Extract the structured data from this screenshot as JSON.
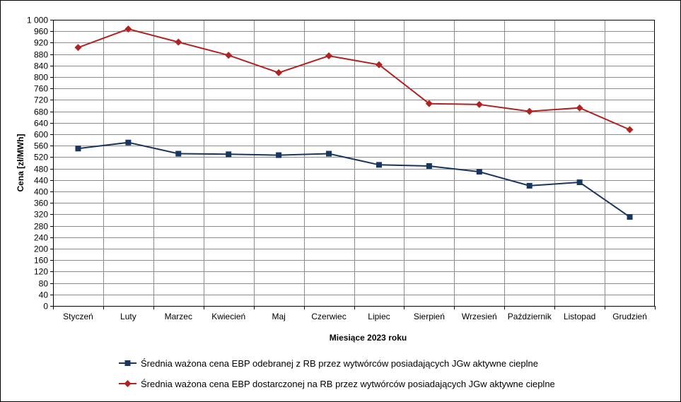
{
  "chart_data": {
    "type": "line",
    "title": "",
    "xlabel": "Miesiące 2023  roku",
    "ylabel": "Cena [zł/MWh]",
    "ylim": [
      0,
      1000
    ],
    "ytick_step": 40,
    "ytick_labels": [
      "0",
      "40",
      "80",
      "120",
      "160",
      "200",
      "240",
      "280",
      "320",
      "360",
      "400",
      "440",
      "480",
      "520",
      "560",
      "600",
      "640",
      "680",
      "720",
      "760",
      "800",
      "840",
      "880",
      "920",
      "960",
      "1 000"
    ],
    "grid": true,
    "legend_position": "bottom",
    "categories": [
      "Styczeń",
      "Luty",
      "Marzec",
      "Kwiecień",
      "Maj",
      "Czerwiec",
      "Lipiec",
      "Sierpień",
      "Wrzesień",
      "Październik",
      "Listopad",
      "Grudzień"
    ],
    "series": [
      {
        "name": "Średnia ważona cena EBP odebranej z RB przez wytwórców posiadających JGw aktywne cieplne",
        "color": "#17375e",
        "marker": "square",
        "values": [
          550,
          571,
          532,
          530,
          527,
          532,
          493,
          489,
          469,
          420,
          432,
          311
        ]
      },
      {
        "name": "Średnia ważona cena EBP dostarczonej na RB przez wytwórców posiadających JGw aktywne cieplne",
        "color": "#b22222",
        "marker": "diamond",
        "values": [
          903,
          968,
          922,
          876,
          815,
          874,
          843,
          707,
          704,
          680,
          692,
          616
        ]
      }
    ]
  }
}
